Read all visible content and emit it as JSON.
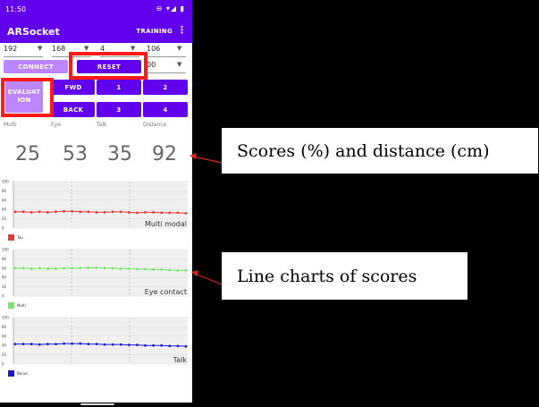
{
  "status": {
    "time": "11:50",
    "icons": "⊖ ▾◢ ▮"
  },
  "app": {
    "title": "ARSocket",
    "training_label": "TRAINING",
    "overflow": "⋮"
  },
  "spinners": [
    {
      "value": "192"
    },
    {
      "value": "168"
    },
    {
      "value": "4"
    },
    {
      "value": "106"
    },
    {
      "value": "00"
    }
  ],
  "buttons": {
    "connect": "CONNECT",
    "reset": "RESET",
    "evaluation": "EVALUAT ION",
    "fwd": "FWD",
    "back": "BACK",
    "n1": "1",
    "n2": "2",
    "n3": "3",
    "n4": "4"
  },
  "scores": {
    "labels": [
      "Multi",
      "Eye",
      "Talk",
      "Distance"
    ],
    "values": [
      "25",
      "53",
      "35",
      "92"
    ]
  },
  "charts": [
    {
      "title": "Multi modal",
      "color": "#e53935",
      "legend": "Tau",
      "yticks": [
        "100",
        "80",
        "60",
        "40",
        "20",
        "0"
      ],
      "values": [
        35,
        35,
        34,
        35,
        34,
        35,
        36,
        36,
        35,
        35,
        34,
        34,
        35,
        35,
        34,
        33,
        34,
        34,
        33,
        33,
        33,
        32
      ]
    },
    {
      "title": "Eye contact",
      "color": "#76e86a",
      "legend": "Multi",
      "yticks": [
        "100",
        "80",
        "60",
        "40",
        "20",
        "0"
      ],
      "values": [
        60,
        60,
        59,
        60,
        59,
        59,
        60,
        60,
        60,
        61,
        61,
        60,
        60,
        59,
        59,
        58,
        58,
        57,
        57,
        56,
        55,
        55
      ]
    },
    {
      "title": "Talk",
      "color": "#1b1bd6",
      "legend": "Bonus",
      "yticks": [
        "100",
        "80",
        "60",
        "40",
        "20",
        "0"
      ],
      "values": [
        43,
        43,
        43,
        42,
        43,
        43,
        44,
        44,
        44,
        43,
        43,
        42,
        42,
        42,
        41,
        41,
        40,
        40,
        40,
        39,
        39,
        38
      ]
    }
  ],
  "callouts": {
    "scores": "Scores (%) and distance (cm)",
    "charts": "Line charts of scores"
  },
  "colors": {
    "accent": "#6200ee",
    "accent_light": "#bb86fc",
    "highlight": "#ff1a1a"
  }
}
